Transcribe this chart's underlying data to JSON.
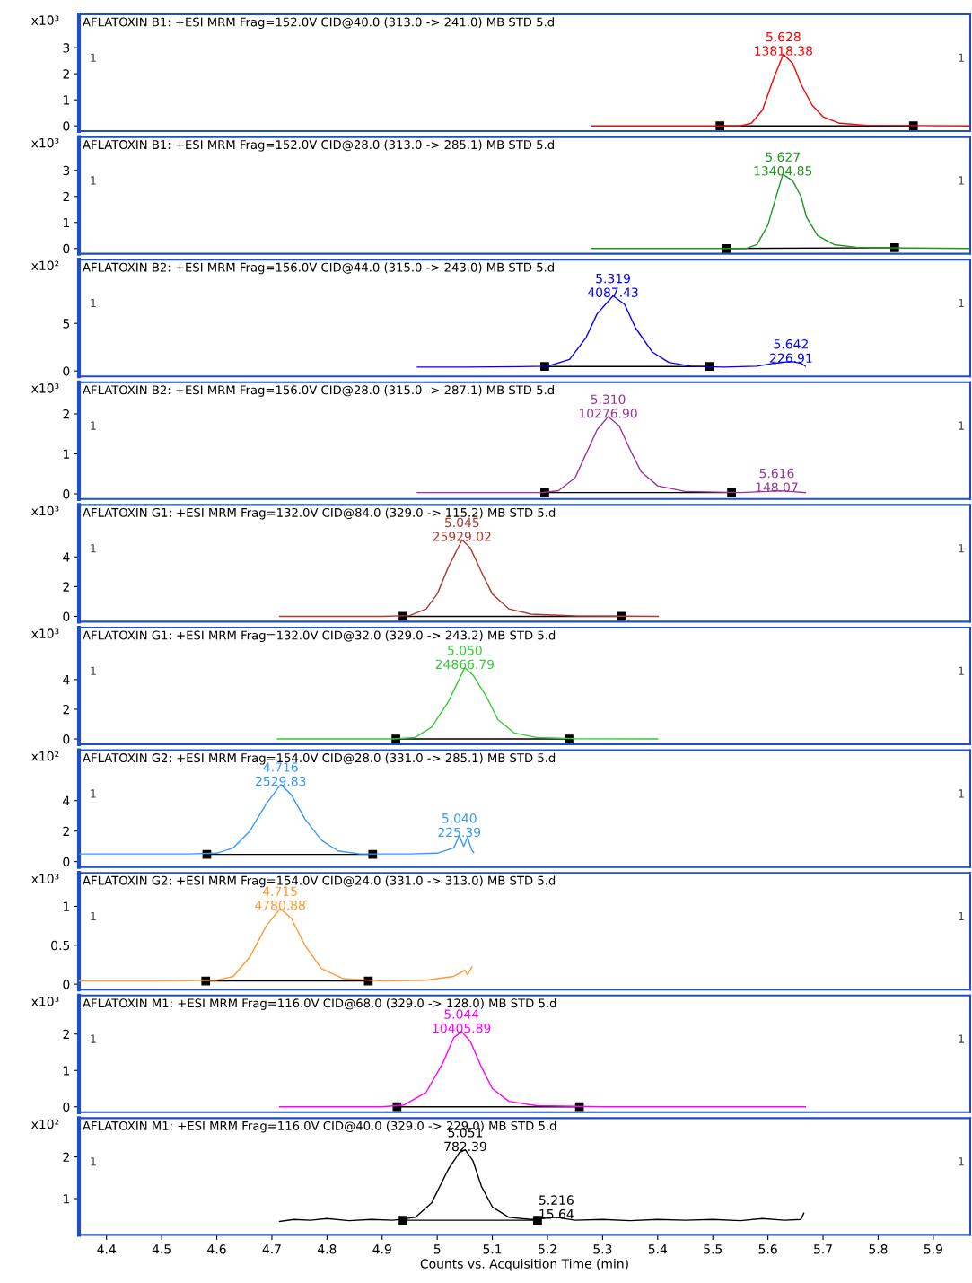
{
  "chart_data": [
    {
      "type": "line",
      "title": "AFLATOXIN B1: +ESI MRM Frag=152.0V CID@40.0 (313.0 -> 241.0) MB STD 5.d",
      "ylabel": "x10³",
      "xlim": [
        4.35,
        5.967
      ],
      "ylim": [
        -0.2,
        4.28
      ],
      "xticks": [
        4.4,
        4.5,
        4.6,
        4.7,
        4.8,
        4.9,
        5,
        5.1,
        5.2,
        5.3,
        5.4,
        5.5,
        5.6,
        5.7,
        5.8,
        5.9
      ],
      "yticks": [
        0,
        1,
        2,
        3
      ],
      "tick_labels": "y",
      "annotations": [
        "1",
        "1",
        {
          "text": "5.628\n13818.38",
          "x": 5.628,
          "y": 2.75
        }
      ],
      "series": [
        {
          "color": "#ff0000",
          "x": [
            5.28,
            5.55,
            5.57,
            5.59,
            5.61,
            5.628,
            5.645,
            5.66,
            5.68,
            5.7,
            5.73,
            5.78,
            5.967
          ],
          "values": [
            0,
            0,
            0.1,
            0.6,
            1.8,
            2.75,
            2.4,
            1.6,
            0.8,
            0.35,
            0.1,
            0.02,
            0
          ]
        },
        {
          "color": "#000000",
          "marker": "square",
          "x": [
            5.513,
            5.864
          ],
          "values": [
            0,
            0
          ]
        }
      ]
    },
    {
      "type": "line",
      "title": "AFLATOXIN B1: +ESI MRM Frag=152.0V CID@28.0 (313.0 -> 285.1) MB STD 5.d",
      "ylabel": "x10³",
      "xlim": [
        4.35,
        5.967
      ],
      "ylim": [
        -0.2,
        4.28
      ],
      "xticks": [
        4.4,
        4.5,
        4.6,
        4.7,
        4.8,
        4.9,
        5,
        5.1,
        5.2,
        5.3,
        5.4,
        5.5,
        5.6,
        5.7,
        5.8,
        5.9
      ],
      "yticks": [
        0,
        1,
        2,
        3
      ],
      "tick_labels": "y",
      "annotations": [
        "1",
        "1",
        {
          "text": "5.627\n13404.85",
          "x": 5.627,
          "y": 2.85
        }
      ],
      "series": [
        {
          "color": "#1a9a1a",
          "x": [
            5.28,
            5.56,
            5.58,
            5.6,
            5.615,
            5.627,
            5.645,
            5.66,
            5.67,
            5.69,
            5.72,
            5.76,
            5.85,
            5.967
          ],
          "values": [
            0,
            0,
            0.15,
            0.9,
            2.0,
            2.85,
            2.6,
            2.0,
            1.2,
            0.5,
            0.15,
            0.05,
            0.02,
            0
          ]
        },
        {
          "color": "#000000",
          "marker": "square",
          "x": [
            5.525,
            5.83
          ],
          "values": [
            0,
            0.03
          ]
        }
      ]
    },
    {
      "type": "line",
      "title": "AFLATOXIN B2: +ESI MRM Frag=156.0V CID@44.0 (315.0 -> 243.0) MB STD 5.d",
      "ylabel": "x10²",
      "xlim": [
        4.35,
        5.967
      ],
      "ylim": [
        -0.57,
        11.7
      ],
      "xticks": [
        4.4,
        4.5,
        4.6,
        4.7,
        4.8,
        4.9,
        5,
        5.1,
        5.2,
        5.3,
        5.4,
        5.5,
        5.6,
        5.7,
        5.8,
        5.9
      ],
      "yticks": [
        0,
        5
      ],
      "tick_labels": "y",
      "annotations": [
        "1",
        "1",
        {
          "text": "5.319\n4087.43",
          "x": 5.319,
          "y": 7.9
        },
        {
          "text": "5.642\n226.91",
          "x": 5.642,
          "y": 1.0
        }
      ],
      "series": [
        {
          "color": "#0000ff",
          "x": [
            4.964,
            5.05,
            5.15,
            5.2,
            5.24,
            5.27,
            5.29,
            5.319,
            5.34,
            5.36,
            5.39,
            5.42,
            5.46,
            5.52,
            5.58,
            5.61,
            5.642,
            5.66,
            5.668
          ],
          "values": [
            0.4,
            0.4,
            0.45,
            0.5,
            1.2,
            3.5,
            6.0,
            7.9,
            7.0,
            4.5,
            2.0,
            0.9,
            0.5,
            0.4,
            0.5,
            0.8,
            1.0,
            0.8,
            0.5
          ]
        },
        {
          "color": "#000000",
          "marker": "square",
          "x": [
            5.195,
            5.494
          ],
          "values": [
            0.47,
            0.47
          ]
        }
      ]
    },
    {
      "type": "line",
      "title": "AFLATOXIN B2: +ESI MRM Frag=156.0V CID@28.0 (315.0 -> 287.1) MB STD 5.d",
      "ylabel": "x10³",
      "xlim": [
        4.35,
        5.967
      ],
      "ylim": [
        -0.13,
        2.79
      ],
      "xticks": [
        4.4,
        4.5,
        4.6,
        4.7,
        4.8,
        4.9,
        5,
        5.1,
        5.2,
        5.3,
        5.4,
        5.5,
        5.6,
        5.7,
        5.8,
        5.9
      ],
      "yticks": [
        0,
        1,
        2
      ],
      "tick_labels": "y",
      "annotations": [
        "1",
        "1",
        {
          "text": "5.310\n10276.90",
          "x": 5.31,
          "y": 1.93
        },
        {
          "text": "5.616\n148.07",
          "x": 5.616,
          "y": 0.08
        }
      ],
      "series": [
        {
          "color": "#993399",
          "x": [
            4.964,
            5.1,
            5.19,
            5.22,
            5.25,
            5.27,
            5.29,
            5.31,
            5.33,
            5.35,
            5.37,
            5.4,
            5.45,
            5.55,
            5.6,
            5.616,
            5.64,
            5.668
          ],
          "values": [
            0.03,
            0.03,
            0.03,
            0.08,
            0.4,
            1.0,
            1.6,
            1.93,
            1.7,
            1.1,
            0.55,
            0.2,
            0.06,
            0.03,
            0.06,
            0.08,
            0.06,
            0.03
          ]
        },
        {
          "color": "#000000",
          "marker": "square",
          "x": [
            5.195,
            5.534
          ],
          "values": [
            0.03,
            0.03
          ]
        }
      ]
    },
    {
      "type": "line",
      "title": "AFLATOXIN G1: +ESI MRM Frag=132.0V CID@84.0 (329.0 -> 115.2) MB STD 5.d",
      "ylabel": "x10³",
      "xlim": [
        4.35,
        5.967
      ],
      "ylim": [
        -0.36,
        7.5
      ],
      "xticks": [
        4.4,
        4.5,
        4.6,
        4.7,
        4.8,
        4.9,
        5,
        5.1,
        5.2,
        5.3,
        5.4,
        5.5,
        5.6,
        5.7,
        5.8,
        5.9
      ],
      "yticks": [
        0,
        2,
        4
      ],
      "tick_labels": "y",
      "annotations": [
        "1",
        "1",
        {
          "text": "5.045\n25929.02",
          "x": 5.045,
          "y": 5.15
        }
      ],
      "series": [
        {
          "color": "#b03a2e",
          "x": [
            4.714,
            4.9,
            4.95,
            4.98,
            5.0,
            5.02,
            5.045,
            5.06,
            5.08,
            5.1,
            5.13,
            5.17,
            5.25,
            5.401
          ],
          "values": [
            0,
            0,
            0.05,
            0.5,
            1.5,
            3.3,
            5.15,
            4.6,
            3.0,
            1.5,
            0.5,
            0.15,
            0.03,
            0
          ]
        },
        {
          "color": "#000000",
          "marker": "square",
          "x": [
            4.938,
            5.335
          ],
          "values": [
            0,
            0
          ]
        }
      ]
    },
    {
      "type": "line",
      "title": "AFLATOXIN G1: +ESI MRM Frag=132.0V CID@32.0 (329.0 -> 243.2) MB STD 5.d",
      "ylabel": "x10³",
      "xlim": [
        4.35,
        5.967
      ],
      "ylim": [
        -0.36,
        7.5
      ],
      "xticks": [
        4.4,
        4.5,
        4.6,
        4.7,
        4.8,
        4.9,
        5,
        5.1,
        5.2,
        5.3,
        5.4,
        5.5,
        5.6,
        5.7,
        5.8,
        5.9
      ],
      "yticks": [
        0,
        2,
        4
      ],
      "tick_labels": "y",
      "annotations": [
        "1",
        "1",
        {
          "text": "5.050\n24866.79",
          "x": 5.05,
          "y": 4.8
        }
      ],
      "series": [
        {
          "color": "#33cc33",
          "x": [
            4.71,
            4.92,
            4.96,
            4.99,
            5.02,
            5.05,
            5.065,
            5.09,
            5.11,
            5.14,
            5.18,
            5.25,
            5.4
          ],
          "values": [
            0,
            0,
            0.1,
            0.8,
            2.5,
            4.8,
            4.3,
            2.8,
            1.3,
            0.4,
            0.1,
            0.02,
            0
          ]
        },
        {
          "color": "#000000",
          "marker": "square",
          "x": [
            4.925,
            5.239
          ],
          "values": [
            0,
            0
          ]
        }
      ]
    },
    {
      "type": "line",
      "title": "AFLATOXIN G2: +ESI MRM Frag=154.0V CID@28.0 (331.0 -> 285.1) MB STD 5.d",
      "ylabel": "x10²",
      "xlim": [
        4.35,
        5.967
      ],
      "ylim": [
        -0.35,
        7.3
      ],
      "xticks": [
        4.4,
        4.5,
        4.6,
        4.7,
        4.8,
        4.9,
        5,
        5.1,
        5.2,
        5.3,
        5.4,
        5.5,
        5.6,
        5.7,
        5.8,
        5.9
      ],
      "yticks": [
        0,
        2,
        4
      ],
      "tick_labels": "y",
      "annotations": [
        "1",
        "1",
        {
          "text": "4.716\n2529.83",
          "x": 4.716,
          "y": 5.05
        },
        {
          "text": "5.040\n225.39",
          "x": 5.04,
          "y": 1.7
        }
      ],
      "series": [
        {
          "color": "#3399ff",
          "x": [
            4.35,
            4.45,
            4.55,
            4.6,
            4.63,
            4.66,
            4.69,
            4.716,
            4.735,
            4.76,
            4.79,
            4.82,
            4.86,
            4.95,
            5.0,
            5.03,
            5.04,
            5.048,
            5.055,
            5.062,
            5.066
          ],
          "values": [
            0.5,
            0.5,
            0.5,
            0.55,
            0.9,
            2.0,
            3.8,
            5.05,
            4.4,
            2.8,
            1.4,
            0.7,
            0.5,
            0.5,
            0.55,
            0.9,
            1.7,
            1.0,
            1.6,
            0.8,
            0.6
          ]
        },
        {
          "color": "#000000",
          "marker": "square",
          "x": [
            4.582,
            4.883
          ],
          "values": [
            0.47,
            0.47
          ]
        }
      ]
    },
    {
      "type": "line",
      "title": "AFLATOXIN G2: +ESI MRM Frag=154.0V CID@24.0 (331.0 -> 313.0) MB STD 5.d",
      "ylabel": "x10³",
      "xlim": [
        4.35,
        5.967
      ],
      "ylim": [
        -0.07,
        1.43
      ],
      "xticks": [
        4.4,
        4.5,
        4.6,
        4.7,
        4.8,
        4.9,
        5,
        5.1,
        5.2,
        5.3,
        5.4,
        5.5,
        5.6,
        5.7,
        5.8,
        5.9
      ],
      "yticks": [
        0,
        0.5,
        1
      ],
      "tick_labels": "y",
      "annotations": [
        "1",
        "1",
        {
          "text": "4.715\n4780.88",
          "x": 4.715,
          "y": 0.97
        }
      ],
      "series": [
        {
          "color": "#ff9933",
          "x": [
            4.35,
            4.5,
            4.6,
            4.63,
            4.66,
            4.69,
            4.715,
            4.735,
            4.76,
            4.79,
            4.83,
            4.9,
            4.98,
            5.03,
            5.05,
            5.055,
            5.063
          ],
          "values": [
            0.04,
            0.04,
            0.05,
            0.1,
            0.35,
            0.75,
            0.97,
            0.85,
            0.5,
            0.2,
            0.07,
            0.04,
            0.05,
            0.1,
            0.18,
            0.12,
            0.22
          ]
        },
        {
          "color": "#000000",
          "marker": "square",
          "x": [
            4.58,
            4.875
          ],
          "values": [
            0.04,
            0.04
          ]
        }
      ]
    },
    {
      "type": "line",
      "title": "AFLATOXIN M1: +ESI MRM Frag=116.0V CID@68.0 (329.0 -> 128.0) MB STD 5.d",
      "ylabel": "x10³",
      "xlim": [
        4.35,
        5.967
      ],
      "ylim": [
        -0.15,
        3.06
      ],
      "xticks": [
        4.4,
        4.5,
        4.6,
        4.7,
        4.8,
        4.9,
        5,
        5.1,
        5.2,
        5.3,
        5.4,
        5.5,
        5.6,
        5.7,
        5.8,
        5.9
      ],
      "yticks": [
        0,
        1,
        2
      ],
      "tick_labels": "y",
      "annotations": [
        "1",
        "1",
        {
          "text": "5.044\n10405.89",
          "x": 5.044,
          "y": 2.07
        }
      ],
      "series": [
        {
          "color": "#ff00ff",
          "x": [
            4.714,
            4.9,
            4.94,
            4.98,
            5.01,
            5.03,
            5.044,
            5.06,
            5.08,
            5.1,
            5.13,
            5.18,
            5.3,
            5.668
          ],
          "values": [
            0,
            0,
            0.05,
            0.4,
            1.2,
            1.9,
            2.07,
            1.8,
            1.1,
            0.5,
            0.15,
            0.03,
            0,
            0
          ]
        },
        {
          "color": "#000000",
          "marker": "square",
          "x": [
            4.927,
            5.258
          ],
          "values": [
            0,
            0
          ]
        }
      ]
    },
    {
      "type": "line",
      "title": "AFLATOXIN M1: +ESI MRM Frag=116.0V CID@40.0 (329.0 -> 229.0) MB STD 5.d",
      "ylabel": "x10²",
      "xlabel": "Counts vs. Acquisition Time (min)",
      "xlim": [
        4.35,
        5.967
      ],
      "ylim": [
        0.13,
        2.93
      ],
      "xticks": [
        4.4,
        4.5,
        4.6,
        4.7,
        4.8,
        4.9,
        5,
        5.1,
        5.2,
        5.3,
        5.4,
        5.5,
        5.6,
        5.7,
        5.8,
        5.9
      ],
      "yticks": [
        1,
        2
      ],
      "annotations": [
        "1",
        "1",
        {
          "text": "5.051\n782.39",
          "x": 5.051,
          "y": 2.17
        },
        {
          "text": "5.216\n15.64",
          "x": 5.216,
          "y": 0.55
        }
      ],
      "series": [
        {
          "color": "#000000",
          "x": [
            4.714,
            4.74,
            4.77,
            4.8,
            4.84,
            4.88,
            4.92,
            4.96,
            4.99,
            5.02,
            5.04,
            5.051,
            5.065,
            5.08,
            5.1,
            5.13,
            5.17,
            5.216,
            5.25,
            5.3,
            5.35,
            5.4,
            5.45,
            5.5,
            5.55,
            5.59,
            5.63,
            5.66,
            5.665
          ],
          "values": [
            0.45,
            0.5,
            0.48,
            0.52,
            0.47,
            0.5,
            0.48,
            0.55,
            0.9,
            1.7,
            2.1,
            2.17,
            1.9,
            1.3,
            0.8,
            0.55,
            0.5,
            0.55,
            0.48,
            0.5,
            0.47,
            0.5,
            0.48,
            0.5,
            0.47,
            0.52,
            0.48,
            0.5,
            0.65
          ]
        },
        {
          "color": "#000000",
          "marker": "square",
          "x": [
            4.938,
            5.182
          ],
          "values": [
            0.48,
            0.48
          ]
        }
      ]
    }
  ]
}
